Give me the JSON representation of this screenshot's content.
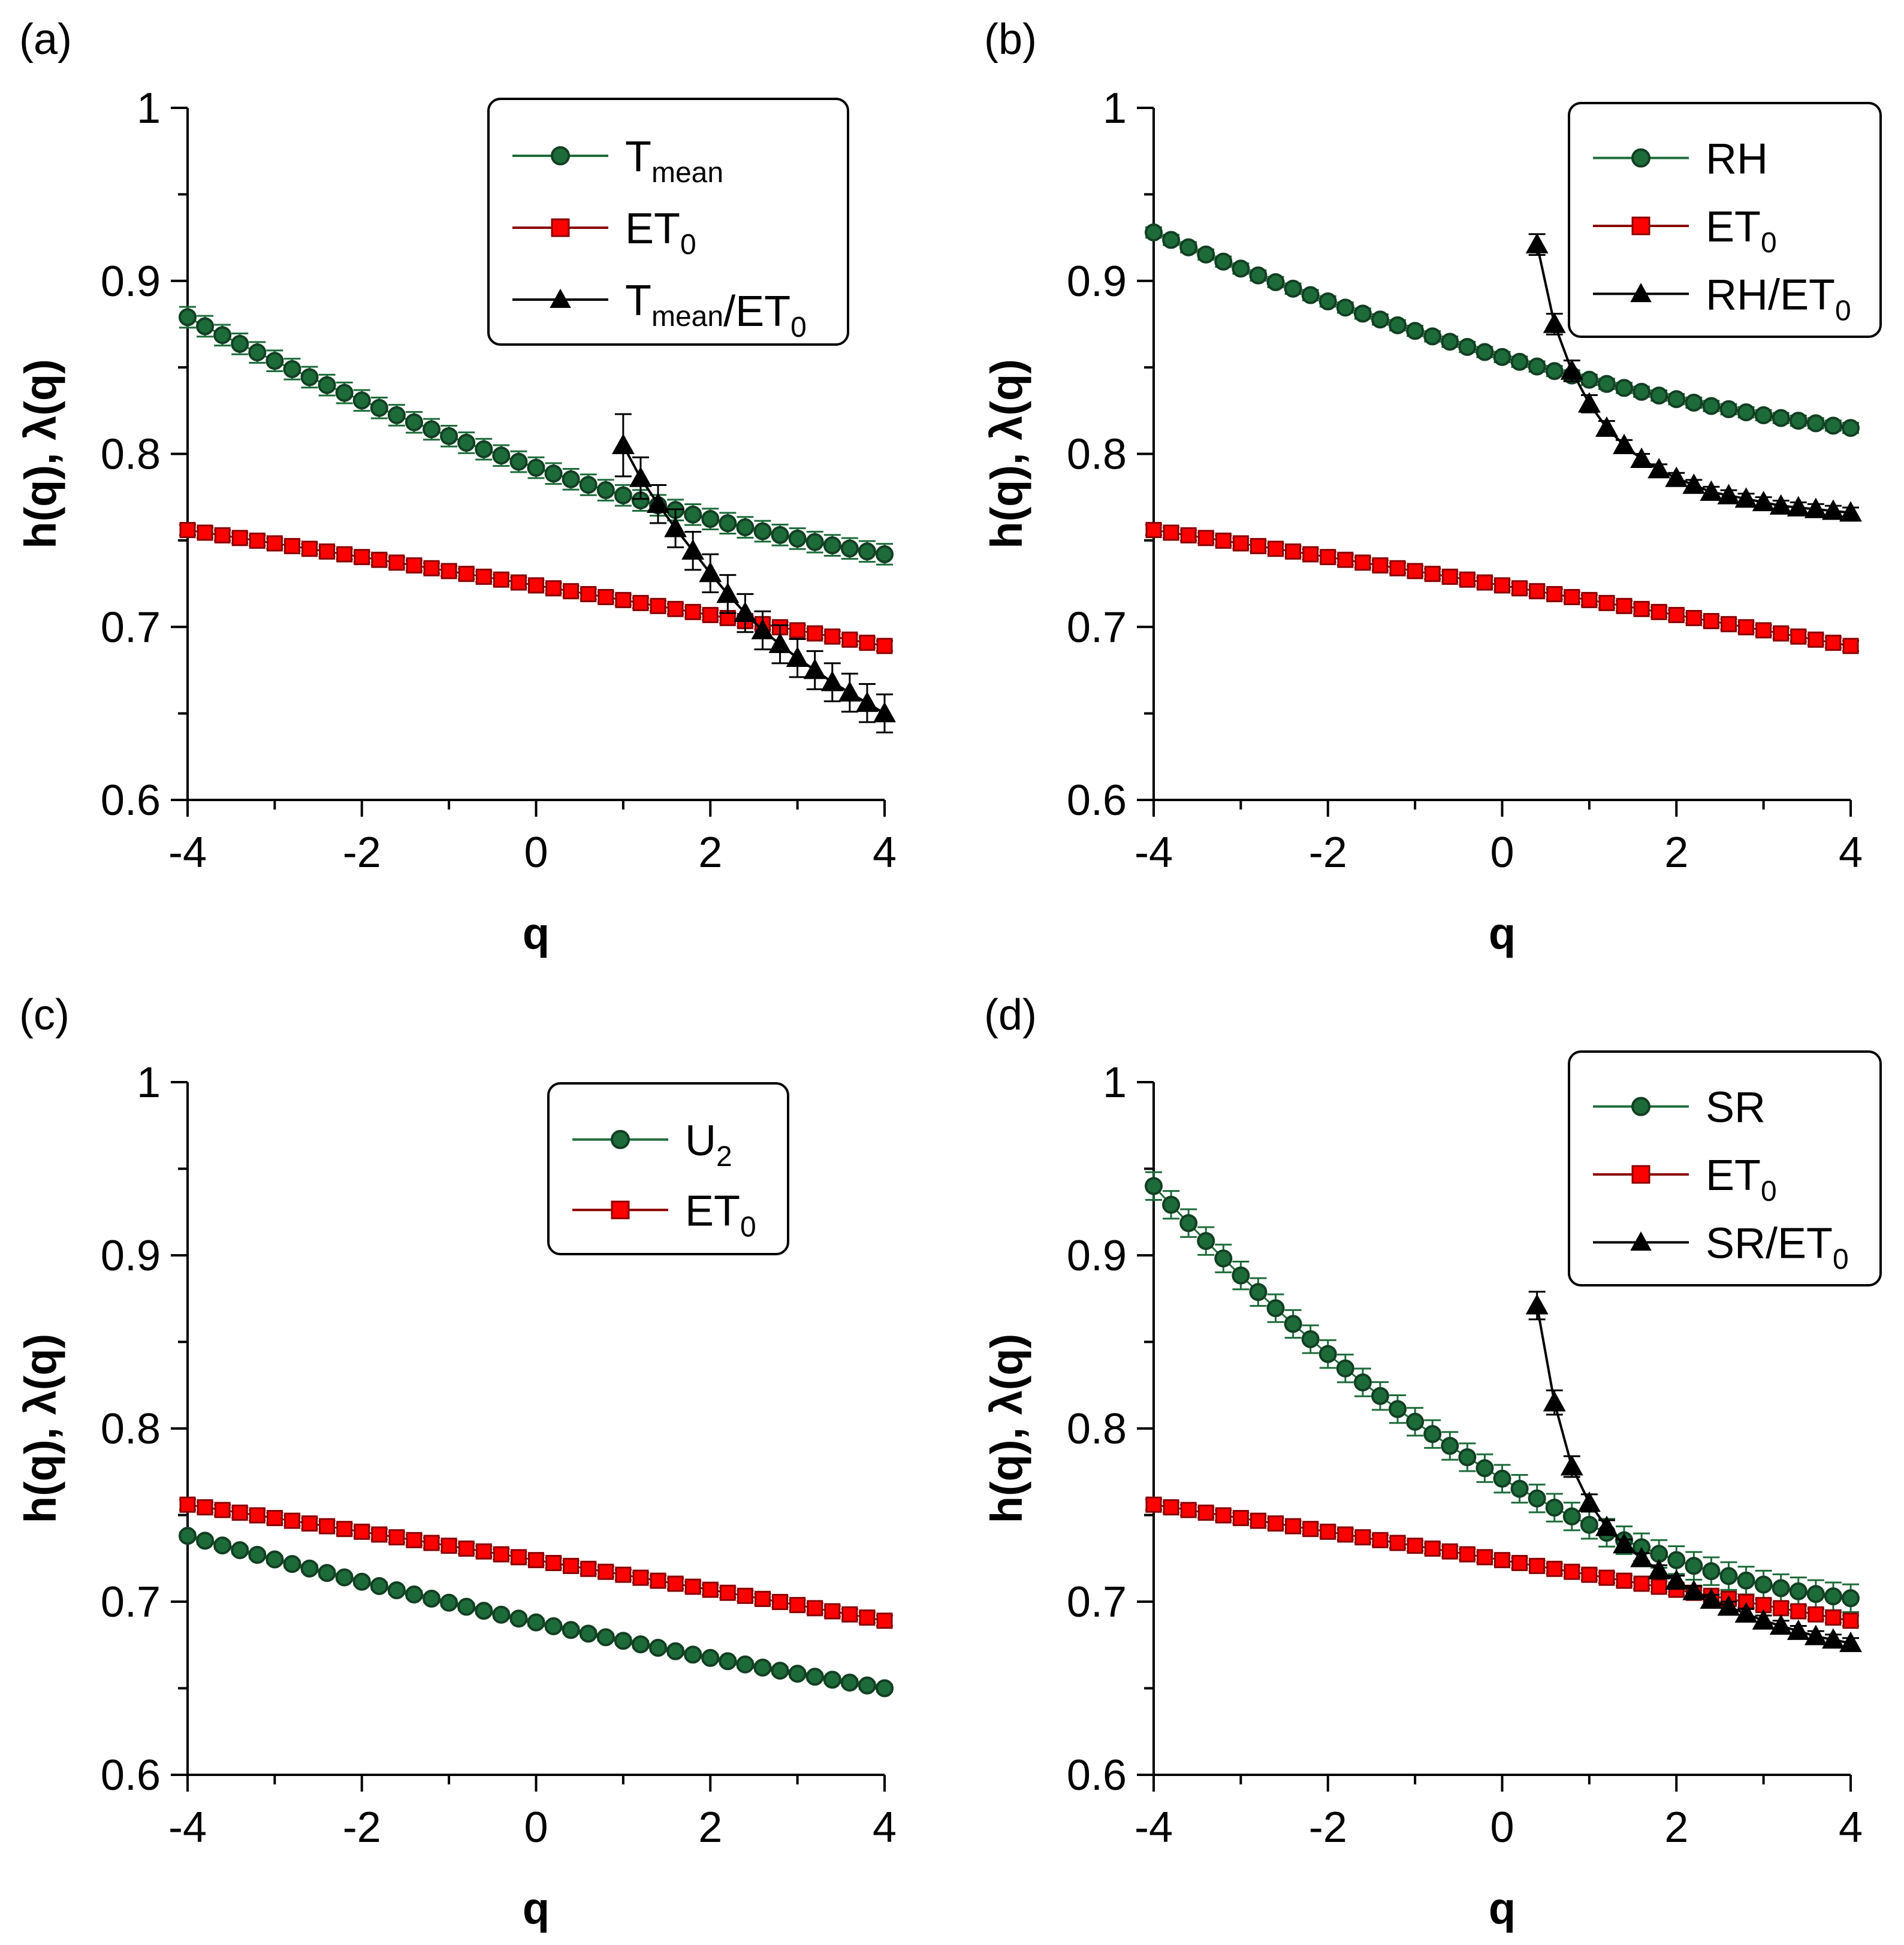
{
  "colors": {
    "green": "#1e6b3a",
    "green_dark": "#123f22",
    "red": "#ff0000",
    "red_dark": "#8a0000",
    "black": "#000000"
  },
  "chart_data": [
    {
      "type": "line",
      "panel_label": "(a)",
      "xlabel": "q",
      "ylabel": "h(q), λ(q)",
      "xlim": [
        -4,
        4
      ],
      "ylim": [
        0.6,
        1.0
      ],
      "xticks": [
        "-4",
        "-2",
        "0",
        "2",
        "4"
      ],
      "yticks": [
        "0.6",
        "0.7",
        "0.8",
        "0.9",
        "1"
      ],
      "legend_position": "top-right",
      "series": [
        {
          "name": "Tmean",
          "legend_main": "T",
          "legend_sub": "mean",
          "legend_tail": "",
          "legend_tail_sub": "",
          "color_key": "green",
          "marker": "circle",
          "kind": "curve",
          "x_start": -4,
          "x_end": 4,
          "x_step": 0.2,
          "y_start": 0.879,
          "y_mid": 0.792,
          "y_end": 0.742,
          "err": 0.006
        },
        {
          "name": "ET0",
          "legend_main": "ET",
          "legend_sub": "0",
          "legend_tail": "",
          "legend_tail_sub": "",
          "color_key": "red",
          "marker": "square",
          "kind": "curve",
          "x_start": -4,
          "x_end": 4,
          "x_step": 0.2,
          "y_start": 0.756,
          "y_mid": 0.724,
          "y_end": 0.689,
          "err": 0.003
        },
        {
          "name": "Tmean/ET0",
          "legend_main": "T",
          "legend_sub": "mean",
          "legend_tail": "/ET",
          "legend_tail_sub": "0",
          "color_key": "black",
          "marker": "triangle",
          "kind": "points",
          "x": [
            1.0,
            1.2,
            1.4,
            1.6,
            1.8,
            2.0,
            2.2,
            2.4,
            2.6,
            2.8,
            3.0,
            3.2,
            3.4,
            3.6,
            3.8,
            4.0
          ],
          "y": [
            0.805,
            0.786,
            0.771,
            0.757,
            0.744,
            0.731,
            0.719,
            0.708,
            0.698,
            0.69,
            0.682,
            0.675,
            0.668,
            0.662,
            0.656,
            0.65
          ],
          "err": [
            0.018,
            0.012,
            0.011,
            0.011,
            0.011,
            0.011,
            0.011,
            0.011,
            0.011,
            0.011,
            0.011,
            0.011,
            0.011,
            0.011,
            0.011,
            0.011
          ]
        }
      ]
    },
    {
      "type": "line",
      "panel_label": "(b)",
      "xlabel": "q",
      "ylabel": "h(q), λ(q)",
      "xlim": [
        -4,
        4
      ],
      "ylim": [
        0.6,
        1.0
      ],
      "xticks": [
        "-4",
        "-2",
        "0",
        "2",
        "4"
      ],
      "yticks": [
        "0.6",
        "0.7",
        "0.8",
        "0.9",
        "1"
      ],
      "legend_position": "top-right",
      "series": [
        {
          "name": "RH",
          "legend_main": "RH",
          "legend_sub": "",
          "legend_tail": "",
          "legend_tail_sub": "",
          "color_key": "green",
          "marker": "circle",
          "kind": "curve",
          "x_start": -4,
          "x_end": 4,
          "x_step": 0.2,
          "y_start": 0.928,
          "y_mid": 0.856,
          "y_end": 0.815,
          "err": 0.003
        },
        {
          "name": "ET0",
          "legend_main": "ET",
          "legend_sub": "0",
          "legend_tail": "",
          "legend_tail_sub": "",
          "color_key": "red",
          "marker": "square",
          "kind": "curve",
          "x_start": -4,
          "x_end": 4,
          "x_step": 0.2,
          "y_start": 0.756,
          "y_mid": 0.724,
          "y_end": 0.689,
          "err": 0.003
        },
        {
          "name": "RH/ET0",
          "legend_main": "RH/ET",
          "legend_sub": "0",
          "legend_tail": "",
          "legend_tail_sub": "",
          "color_key": "black",
          "marker": "triangle",
          "kind": "points",
          "x": [
            0.4,
            0.6,
            0.8,
            1.0,
            1.2,
            1.4,
            1.6,
            1.8,
            2.0,
            2.2,
            2.4,
            2.6,
            2.8,
            3.0,
            3.2,
            3.4,
            3.6,
            3.8,
            4.0
          ],
          "y": [
            0.921,
            0.875,
            0.848,
            0.829,
            0.815,
            0.805,
            0.797,
            0.791,
            0.786,
            0.782,
            0.778,
            0.776,
            0.774,
            0.772,
            0.77,
            0.769,
            0.768,
            0.767,
            0.766
          ],
          "err": [
            0.006,
            0.006,
            0.006,
            0.005,
            0.004,
            0.003,
            0.003,
            0.003,
            0.003,
            0.003,
            0.003,
            0.003,
            0.003,
            0.003,
            0.003,
            0.003,
            0.003,
            0.003,
            0.003
          ]
        }
      ]
    },
    {
      "type": "line",
      "panel_label": "(c)",
      "xlabel": "q",
      "ylabel": "h(q), λ(q)",
      "xlim": [
        -4,
        4
      ],
      "ylim": [
        0.6,
        1.0
      ],
      "xticks": [
        "-4",
        "-2",
        "0",
        "2",
        "4"
      ],
      "yticks": [
        "0.6",
        "0.7",
        "0.8",
        "0.9",
        "1"
      ],
      "legend_position": "top-center",
      "series": [
        {
          "name": "U2",
          "legend_main": "U",
          "legend_sub": "2",
          "legend_tail": "",
          "legend_tail_sub": "",
          "color_key": "green",
          "marker": "circle",
          "kind": "curve",
          "x_start": -4,
          "x_end": 4,
          "x_step": 0.2,
          "y_start": 0.738,
          "y_mid": 0.688,
          "y_end": 0.65,
          "err": 0.002
        },
        {
          "name": "ET0",
          "legend_main": "ET",
          "legend_sub": "0",
          "legend_tail": "",
          "legend_tail_sub": "",
          "color_key": "red",
          "marker": "square",
          "kind": "curve",
          "x_start": -4,
          "x_end": 4,
          "x_step": 0.2,
          "y_start": 0.756,
          "y_mid": 0.724,
          "y_end": 0.689,
          "err": 0.003
        }
      ]
    },
    {
      "type": "line",
      "panel_label": "(d)",
      "xlabel": "q",
      "ylabel": "h(q), λ(q)",
      "xlim": [
        -4,
        4
      ],
      "ylim": [
        0.6,
        1.0
      ],
      "xticks": [
        "-4",
        "-2",
        "0",
        "2",
        "4"
      ],
      "yticks": [
        "0.6",
        "0.7",
        "0.8",
        "0.9",
        "1"
      ],
      "legend_position": "top-right",
      "series": [
        {
          "name": "SR",
          "legend_main": "SR",
          "legend_sub": "",
          "legend_tail": "",
          "legend_tail_sub": "",
          "color_key": "green",
          "marker": "circle",
          "kind": "curve",
          "x_start": -4,
          "x_end": 4,
          "x_step": 0.2,
          "y_start": 0.94,
          "y_mid": 0.771,
          "y_end": 0.702,
          "err": 0.008
        },
        {
          "name": "ET0",
          "legend_main": "ET",
          "legend_sub": "0",
          "legend_tail": "",
          "legend_tail_sub": "",
          "color_key": "red",
          "marker": "square",
          "kind": "curve",
          "x_start": -4,
          "x_end": 4,
          "x_step": 0.2,
          "y_start": 0.756,
          "y_mid": 0.724,
          "y_end": 0.689,
          "err": 0.003
        },
        {
          "name": "SR/ET0",
          "legend_main": "SR/ET",
          "legend_sub": "0",
          "legend_tail": "",
          "legend_tail_sub": "",
          "color_key": "black",
          "marker": "triangle",
          "kind": "points",
          "x": [
            0.4,
            0.6,
            0.8,
            1.0,
            1.2,
            1.4,
            1.6,
            1.8,
            2.0,
            2.2,
            2.4,
            2.6,
            2.8,
            3.0,
            3.2,
            3.4,
            3.6,
            3.8,
            4.0
          ],
          "y": [
            0.871,
            0.815,
            0.778,
            0.757,
            0.743,
            0.733,
            0.725,
            0.718,
            0.712,
            0.706,
            0.701,
            0.697,
            0.693,
            0.689,
            0.686,
            0.683,
            0.68,
            0.678,
            0.676
          ],
          "err": [
            0.008,
            0.007,
            0.006,
            0.005,
            0.004,
            0.003,
            0.003,
            0.003,
            0.003,
            0.003,
            0.003,
            0.003,
            0.003,
            0.003,
            0.003,
            0.003,
            0.003,
            0.003,
            0.003
          ]
        }
      ]
    }
  ]
}
